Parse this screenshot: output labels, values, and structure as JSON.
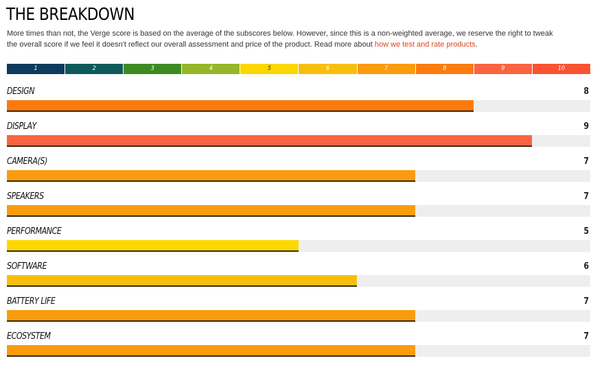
{
  "section": {
    "title": "THE BREAKDOWN",
    "intro_text": "More times than not, the Verge score is based on the average of the subscores below. However, since this is a non-weighted average, we reserve the right to tweak the overall score if we feel it doesn't reflect our overall assessment and price of the product. Read more about ",
    "intro_link": "how we test and rate products",
    "intro_end": "."
  },
  "scale": {
    "max": 10,
    "segments": [
      {
        "label": "1",
        "color": "#0e3a5c"
      },
      {
        "label": "2",
        "color": "#0e5a58"
      },
      {
        "label": "3",
        "color": "#3e8a22"
      },
      {
        "label": "4",
        "color": "#94b628"
      },
      {
        "label": "5",
        "color": "#fcd800"
      },
      {
        "label": "6",
        "color": "#f8be0e"
      },
      {
        "label": "7",
        "color": "#fb9b0e"
      },
      {
        "label": "8",
        "color": "#fb7b0e"
      },
      {
        "label": "9",
        "color": "#fb6440"
      },
      {
        "label": "10",
        "color": "#fb5232"
      }
    ]
  },
  "categories": [
    {
      "label": "DESIGN",
      "score": "8"
    },
    {
      "label": "DISPLAY",
      "score": "9"
    },
    {
      "label": "CAMERA(S)",
      "score": "7"
    },
    {
      "label": "SPEAKERS",
      "score": "7"
    },
    {
      "label": "PERFORMANCE",
      "score": "5"
    },
    {
      "label": "SOFTWARE",
      "score": "6"
    },
    {
      "label": "BATTERY LIFE",
      "score": "7"
    },
    {
      "label": "ECOSYSTEM",
      "score": "7"
    }
  ]
}
